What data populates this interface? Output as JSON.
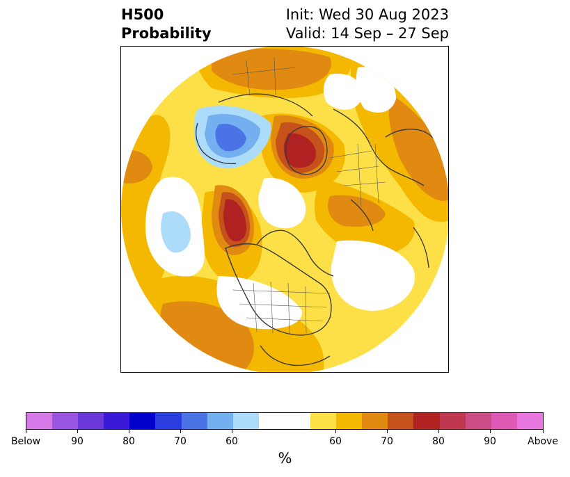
{
  "header": {
    "title_line1": "H500",
    "title_line2": "Probability",
    "init_text": "Init: Wed 30 Aug 2023",
    "valid_text": "Valid: 14 Sep – 27 Sep"
  },
  "legend": {
    "unit": "%",
    "segments": [
      {
        "color": "#d67ae8"
      },
      {
        "color": "#9a55e0"
      },
      {
        "color": "#6a38d8"
      },
      {
        "color": "#3a18d8"
      },
      {
        "color": "#0000cc"
      },
      {
        "color": "#2a3ee0"
      },
      {
        "color": "#4a74e6"
      },
      {
        "color": "#74b0f0"
      },
      {
        "color": "#acdcfa"
      },
      {
        "color": "#ffffff"
      },
      {
        "color": "#ffffff"
      },
      {
        "color": "#fde047"
      },
      {
        "color": "#f5b800"
      },
      {
        "color": "#e08a12"
      },
      {
        "color": "#c4521a"
      },
      {
        "color": "#b02222"
      },
      {
        "color": "#c03850"
      },
      {
        "color": "#cc4e88"
      },
      {
        "color": "#dc5ab4"
      },
      {
        "color": "#e878e0"
      }
    ],
    "tick_labels": [
      "Below",
      "90",
      "80",
      "70",
      "60",
      "60",
      "70",
      "80",
      "90",
      "Above"
    ]
  },
  "map": {
    "projection": "north-polar-stereographic",
    "colors": {
      "yellow_light": "#fde047",
      "yellow": "#f5b800",
      "orange": "#e08a12",
      "dark_orange": "#c4521a",
      "red": "#b02222",
      "blue_pale": "#acdcfa",
      "blue_light": "#74b0f0",
      "blue_mid": "#4a74e6",
      "coast": "#3a3a3a"
    }
  }
}
